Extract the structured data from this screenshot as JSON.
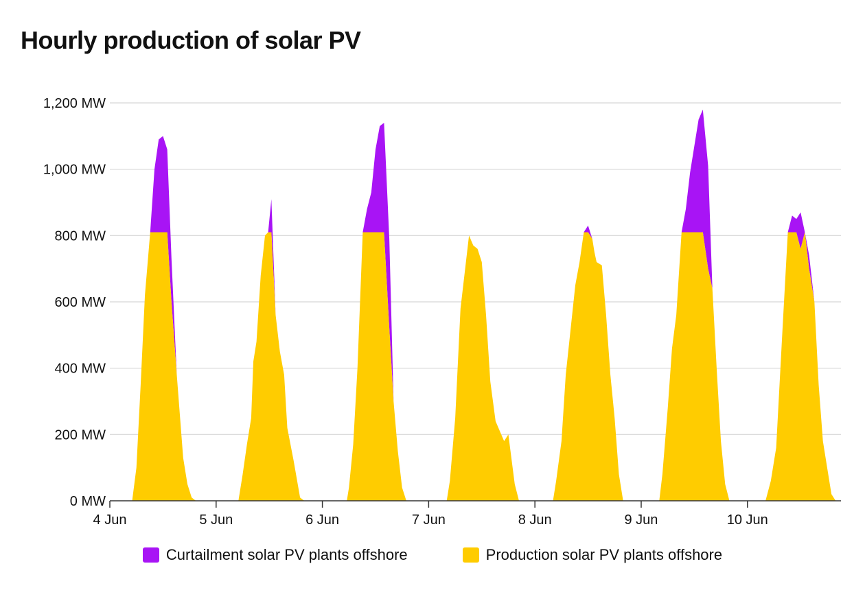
{
  "title": "Hourly production of solar PV",
  "chart_data": {
    "type": "area",
    "stacked": true,
    "title": "Hourly production of solar PV",
    "xlabel": "",
    "ylabel": "",
    "x_unit": "day (June)",
    "x_range": [
      4.0,
      10.88
    ],
    "ylim": [
      0,
      1200
    ],
    "y_ticks": [
      0,
      200,
      400,
      600,
      800,
      1000,
      1200
    ],
    "y_tick_labels": [
      "0 MW",
      "200 MW",
      "400 MW",
      "600 MW",
      "800 MW",
      "1,000 MW",
      "1,200 MW"
    ],
    "x_ticks": [
      4,
      5,
      6,
      7,
      8,
      9,
      10
    ],
    "x_tick_labels": [
      "4 Jun",
      "5 Jun",
      "6 Jun",
      "7 Jun",
      "8 Jun",
      "9 Jun",
      "10 Jun"
    ],
    "grid": true,
    "legend_position": "bottom",
    "series": [
      {
        "name": "Production solar PV plants offshore",
        "color": "#FFCC00",
        "points": [
          [
            4.21,
            0
          ],
          [
            4.25,
            100
          ],
          [
            4.29,
            350
          ],
          [
            4.33,
            620
          ],
          [
            4.38,
            810
          ],
          [
            4.5,
            810
          ],
          [
            4.54,
            810
          ],
          [
            4.58,
            600
          ],
          [
            4.63,
            380
          ],
          [
            4.69,
            130
          ],
          [
            4.73,
            50
          ],
          [
            4.77,
            10
          ],
          [
            4.81,
            0
          ],
          [
            5.21,
            0
          ],
          [
            5.25,
            80
          ],
          [
            5.29,
            170
          ],
          [
            5.33,
            250
          ],
          [
            5.35,
            420
          ],
          [
            5.38,
            480
          ],
          [
            5.42,
            680
          ],
          [
            5.46,
            800
          ],
          [
            5.49,
            810
          ],
          [
            5.52,
            810
          ],
          [
            5.56,
            560
          ],
          [
            5.6,
            450
          ],
          [
            5.64,
            380
          ],
          [
            5.67,
            220
          ],
          [
            5.73,
            120
          ],
          [
            5.79,
            10
          ],
          [
            5.83,
            0
          ],
          [
            6.23,
            0
          ],
          [
            6.25,
            40
          ],
          [
            6.29,
            170
          ],
          [
            6.33,
            400
          ],
          [
            6.38,
            810
          ],
          [
            6.58,
            810
          ],
          [
            6.63,
            520
          ],
          [
            6.67,
            300
          ],
          [
            6.71,
            150
          ],
          [
            6.75,
            40
          ],
          [
            6.79,
            0
          ],
          [
            7.17,
            0
          ],
          [
            7.2,
            60
          ],
          [
            7.25,
            250
          ],
          [
            7.3,
            580
          ],
          [
            7.38,
            800
          ],
          [
            7.42,
            770
          ],
          [
            7.46,
            760
          ],
          [
            7.5,
            720
          ],
          [
            7.54,
            560
          ],
          [
            7.58,
            360
          ],
          [
            7.63,
            240
          ],
          [
            7.71,
            180
          ],
          [
            7.75,
            200
          ],
          [
            7.81,
            50
          ],
          [
            7.85,
            0
          ],
          [
            8.17,
            0
          ],
          [
            8.2,
            60
          ],
          [
            8.25,
            180
          ],
          [
            8.29,
            380
          ],
          [
            8.38,
            650
          ],
          [
            8.42,
            720
          ],
          [
            8.46,
            810
          ],
          [
            8.5,
            810
          ],
          [
            8.54,
            790
          ],
          [
            8.56,
            750
          ],
          [
            8.58,
            720
          ],
          [
            8.63,
            710
          ],
          [
            8.67,
            560
          ],
          [
            8.71,
            380
          ],
          [
            8.75,
            250
          ],
          [
            8.79,
            80
          ],
          [
            8.83,
            0
          ],
          [
            9.17,
            0
          ],
          [
            9.2,
            80
          ],
          [
            9.25,
            280
          ],
          [
            9.29,
            460
          ],
          [
            9.33,
            560
          ],
          [
            9.38,
            810
          ],
          [
            9.58,
            810
          ],
          [
            9.63,
            700
          ],
          [
            9.67,
            640
          ],
          [
            9.71,
            400
          ],
          [
            9.75,
            180
          ],
          [
            9.79,
            50
          ],
          [
            9.83,
            0
          ],
          [
            10.17,
            0
          ],
          [
            10.22,
            60
          ],
          [
            10.27,
            160
          ],
          [
            10.33,
            520
          ],
          [
            10.38,
            810
          ],
          [
            10.42,
            810
          ],
          [
            10.46,
            810
          ],
          [
            10.5,
            760
          ],
          [
            10.54,
            810
          ],
          [
            10.58,
            700
          ],
          [
            10.63,
            600
          ],
          [
            10.67,
            350
          ],
          [
            10.71,
            180
          ],
          [
            10.75,
            100
          ],
          [
            10.79,
            20
          ],
          [
            10.83,
            0
          ]
        ]
      },
      {
        "name": "Curtailment solar PV plants offshore",
        "color": "#A814F5",
        "points": [
          [
            4.38,
            0
          ],
          [
            4.42,
            190
          ],
          [
            4.46,
            280
          ],
          [
            4.5,
            290
          ],
          [
            4.54,
            250
          ],
          [
            4.58,
            130
          ],
          [
            4.63,
            0
          ],
          [
            5.46,
            0
          ],
          [
            5.49,
            0
          ],
          [
            5.52,
            100
          ],
          [
            5.56,
            0
          ],
          [
            6.38,
            0
          ],
          [
            6.42,
            70
          ],
          [
            6.46,
            120
          ],
          [
            6.5,
            250
          ],
          [
            6.54,
            320
          ],
          [
            6.58,
            330
          ],
          [
            6.63,
            270
          ],
          [
            6.67,
            0
          ],
          [
            8.46,
            0
          ],
          [
            8.5,
            20
          ],
          [
            8.54,
            0
          ],
          [
            9.38,
            0
          ],
          [
            9.42,
            70
          ],
          [
            9.46,
            180
          ],
          [
            9.5,
            260
          ],
          [
            9.54,
            340
          ],
          [
            9.58,
            370
          ],
          [
            9.63,
            310
          ],
          [
            9.67,
            0
          ],
          [
            10.38,
            0
          ],
          [
            10.42,
            50
          ],
          [
            10.46,
            40
          ],
          [
            10.5,
            110
          ],
          [
            10.54,
            0
          ],
          [
            10.58,
            40
          ],
          [
            10.63,
            0
          ]
        ]
      }
    ]
  },
  "legend": {
    "items": [
      {
        "label": "Curtailment solar PV plants offshore",
        "color": "#A814F5"
      },
      {
        "label": "Production solar PV plants offshore",
        "color": "#FFCC00"
      }
    ]
  }
}
